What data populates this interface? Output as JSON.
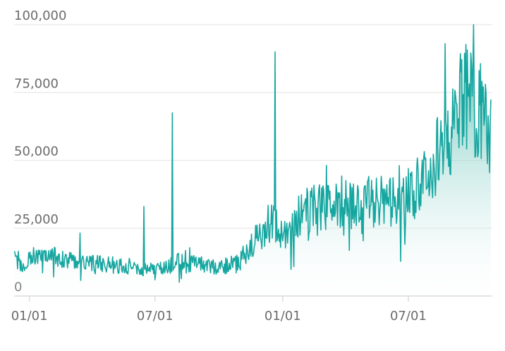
{
  "chart_data": {
    "type": "area",
    "title": "",
    "xlabel": "",
    "ylabel": "",
    "ylim": [
      0,
      100000
    ],
    "xlim": [
      "2021-12-10",
      "2023-10-30"
    ],
    "grid": true,
    "y_ticks": [
      {
        "value": 0,
        "label": "0"
      },
      {
        "value": 25000,
        "label": "25,000"
      },
      {
        "value": 50000,
        "label": "50,000"
      },
      {
        "value": 75000,
        "label": "75,000"
      },
      {
        "value": 100000,
        "label": "100,000"
      }
    ],
    "x_ticks": [
      {
        "date": "2022-01-01",
        "label": "01/01"
      },
      {
        "date": "2022-07-01",
        "label": "07/01"
      },
      {
        "date": "2023-01-01",
        "label": "01/01"
      },
      {
        "date": "2023-07-01",
        "label": "07/01"
      }
    ],
    "colors": {
      "line": "#16a6a0",
      "fill_top": "#3fb3a6",
      "fill_bottom": "#ffffff"
    },
    "series": [
      {
        "x": [
          "2021-12-10",
          "2021-12-25",
          "2022-01-04",
          "2022-01-14",
          "2022-01-26",
          "2022-02-08",
          "2022-02-24",
          "2022-03-12",
          "2022-03-28",
          "2022-04-14",
          "2022-04-30",
          "2022-05-16",
          "2022-06-01",
          "2022-06-15",
          "2022-06-28",
          "2022-07-10",
          "2022-07-20",
          "2022-08-02",
          "2022-08-15",
          "2022-08-30",
          "2022-09-15",
          "2022-10-01",
          "2022-10-16",
          "2022-10-30",
          "2022-11-12",
          "2022-11-24",
          "2022-12-06",
          "2022-12-16",
          "2022-12-28",
          "2023-01-10",
          "2023-01-26",
          "2023-02-12",
          "2023-02-28",
          "2023-03-16",
          "2023-04-01",
          "2023-04-17",
          "2023-05-03",
          "2023-05-19",
          "2023-06-04",
          "2023-06-20",
          "2023-07-04",
          "2023-07-14",
          "2023-07-24",
          "2023-08-04",
          "2023-08-14",
          "2023-08-24",
          "2023-09-02",
          "2023-09-10",
          "2023-09-18",
          "2023-09-26",
          "2023-10-04",
          "2023-10-12",
          "2023-10-20",
          "2023-10-28"
        ],
        "y": [
          14000,
          12000,
          15000,
          14000,
          13000,
          14500,
          13000,
          14000,
          12500,
          12000,
          11500,
          11500,
          10500,
          10000,
          9500,
          10000,
          11000,
          13000,
          11500,
          12000,
          11000,
          10500,
          11500,
          12500,
          17000,
          21000,
          25000,
          28000,
          23000,
          25000,
          30000,
          32000,
          33000,
          34000,
          33500,
          33000,
          35000,
          34500,
          35000,
          36000,
          38000,
          40000,
          45000,
          48000,
          50000,
          55000,
          62000,
          68000,
          75000,
          74000,
          70000,
          68000,
          67000,
          60000
        ],
        "spikes": [
          {
            "x": "2022-06-15",
            "y": 33000
          },
          {
            "x": "2022-07-26",
            "y": 67500
          },
          {
            "x": "2022-12-21",
            "y": 90000
          }
        ]
      }
    ]
  }
}
